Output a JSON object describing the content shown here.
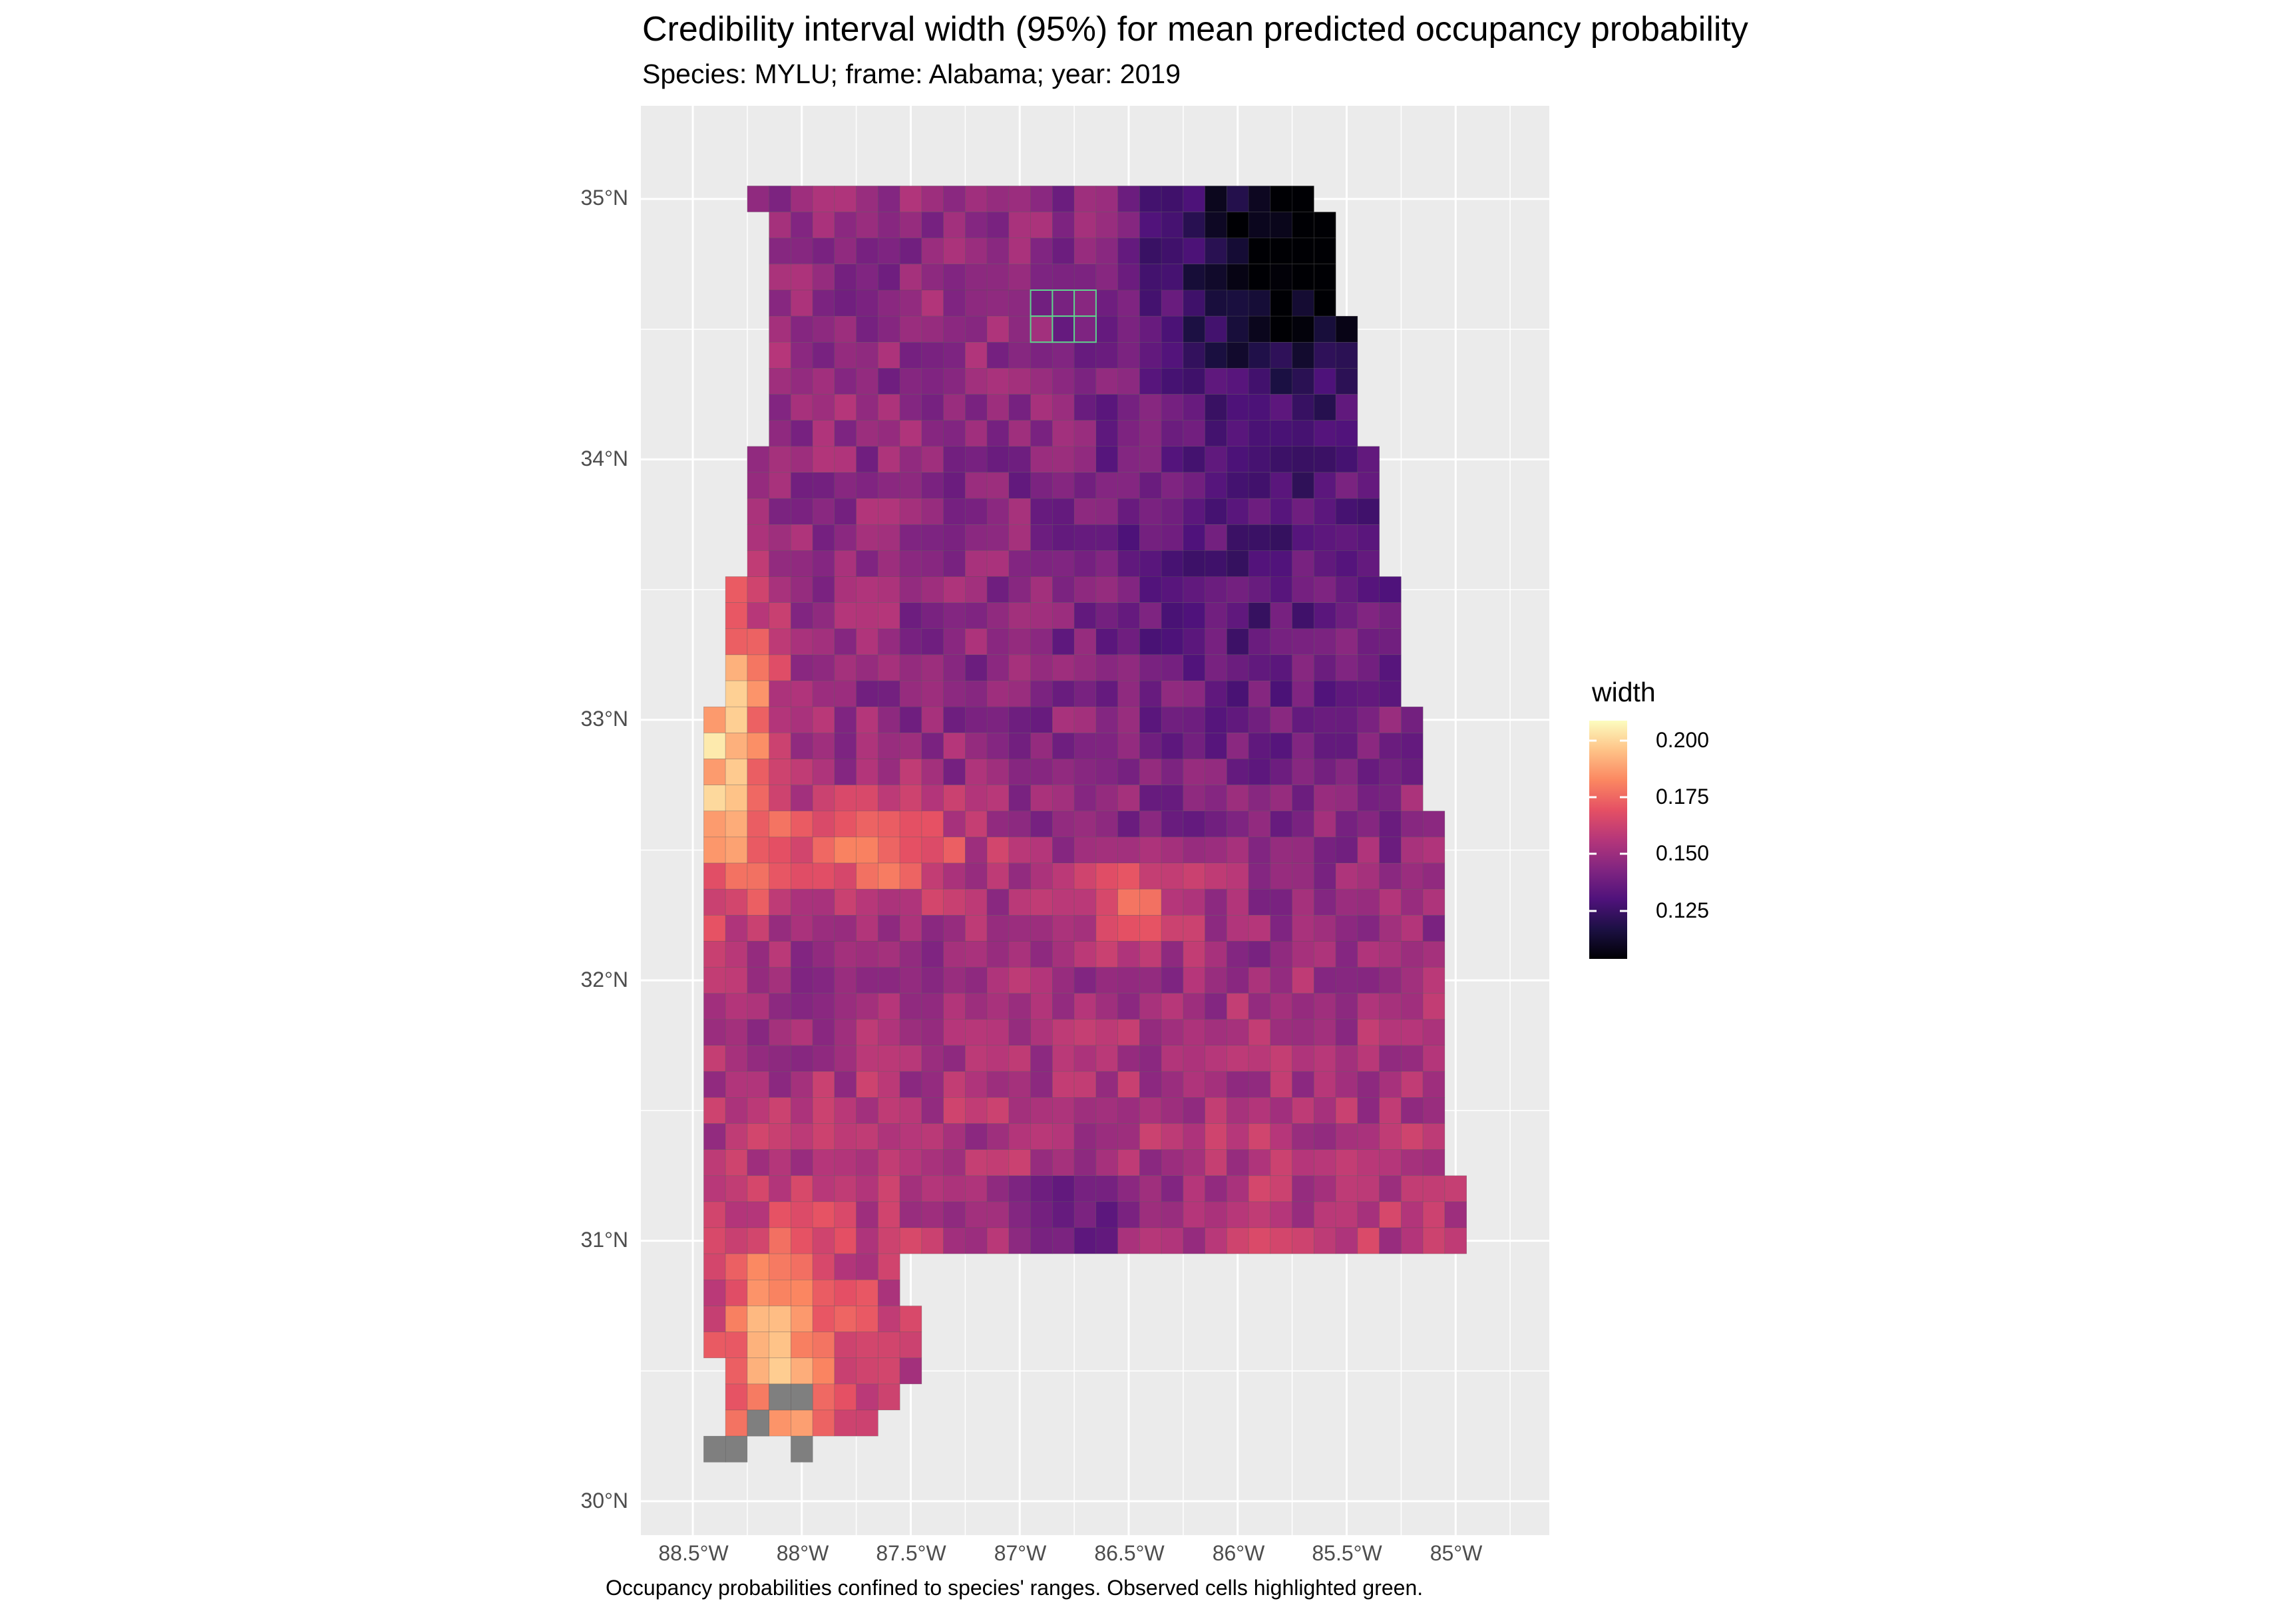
{
  "title": "Credibility interval width (95%) for mean predicted occupancy probability",
  "subtitle": "Species: MYLU; frame: Alabama; year: 2019",
  "caption": "Occupancy probabilities confined to species' ranges. Observed cells highlighted green.",
  "axes": {
    "y_ticks": [
      "35°N",
      "34°N",
      "33°N",
      "32°N",
      "31°N",
      "30°N"
    ],
    "x_ticks": [
      "88.5°W",
      "88°W",
      "87.5°W",
      "87°W",
      "86.5°W",
      "86°W",
      "85.5°W",
      "85°W"
    ]
  },
  "legend": {
    "title": "width",
    "labels": [
      "0.200",
      "0.175",
      "0.150",
      "0.125"
    ],
    "min_value": 0.105,
    "max_value": 0.208
  },
  "colors": {
    "panel_background": "#ebebeb",
    "grid": "#ffffff",
    "no_data_cell": "#7f7f7f",
    "observed_outline": "#5fd38d",
    "palette": [
      "#000004",
      "#1c1044",
      "#4f127b",
      "#812581",
      "#b5367a",
      "#e55064",
      "#fb8761",
      "#fec287",
      "#fcfdbf"
    ]
  },
  "map_data": {
    "description_units": "longitude/latitude (degrees)",
    "observed_cells": [
      [
        -86.9,
        34.6
      ],
      [
        -86.8,
        34.6
      ],
      [
        -86.7,
        34.6
      ],
      [
        -86.9,
        34.5
      ],
      [
        -86.8,
        34.5
      ],
      [
        -86.7,
        34.5
      ]
    ],
    "no_data_cells": [
      [
        -88.2,
        30.3
      ],
      [
        -88.3,
        30.2
      ],
      [
        -88.4,
        30.2
      ],
      [
        -88.0,
        30.4
      ],
      [
        -88.1,
        30.4
      ],
      [
        -88.0,
        30.2
      ]
    ]
  }
}
